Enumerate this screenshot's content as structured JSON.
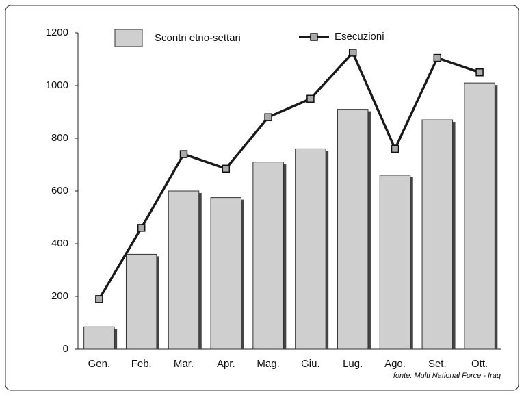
{
  "chart_data": {
    "type": "bar_line",
    "categories": [
      "Gen.",
      "Feb.",
      "Mar.",
      "Apr.",
      "Mag.",
      "Giu.",
      "Lug.",
      "Ago.",
      "Set.",
      "Ott."
    ],
    "series": [
      {
        "name": "Scontri etno-settari",
        "type": "bar",
        "color": "#cfcfcf",
        "values": [
          85,
          360,
          600,
          575,
          710,
          760,
          910,
          660,
          870,
          1010
        ]
      },
      {
        "name": "Esecuzioni",
        "type": "line",
        "color": "#1a1a1a",
        "values": [
          190,
          460,
          740,
          685,
          880,
          950,
          1125,
          760,
          1105,
          1050
        ]
      }
    ],
    "ylim": [
      0,
      1200
    ],
    "yticks": [
      0,
      200,
      400,
      600,
      800,
      1000,
      1200
    ],
    "source": "fonte:  Multi National Force - Iraq"
  }
}
